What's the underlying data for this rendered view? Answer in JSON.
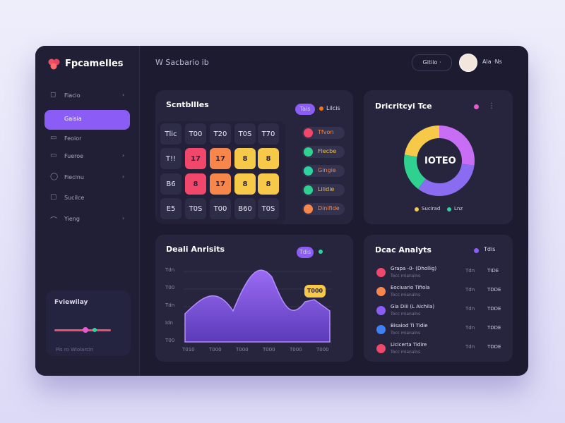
{
  "sidebar": {
    "brand": "Fpcamelles",
    "menu": [
      "Fiacio",
      "Gaisia",
      "Feoior",
      "Fueroe",
      "Fiecinu",
      "Sucilce",
      "Yieng"
    ],
    "card": {
      "title": "Fviewilay",
      "caption": "Pis ro Wiolarcin"
    }
  },
  "header": {
    "title": "W Sacbario ib",
    "button": "Gitiio ·",
    "user": "Ala ·Ns"
  },
  "schedule": {
    "title": "Scntbllles",
    "tag": "Tais",
    "tag2": "Lilcis",
    "grid": [
      [
        "Tlic",
        "T00",
        "T20",
        "T0S",
        "T70"
      ],
      [
        "T!!",
        "17",
        "17",
        "8",
        "8"
      ],
      [
        "B6",
        "8",
        "17",
        "8",
        "8"
      ],
      [
        "E5",
        "T0S",
        "T00",
        "B60",
        "T0S"
      ]
    ],
    "legend": [
      "Tfvon",
      "Flecbe",
      "Gingie",
      "Lilidie",
      "Dinifide"
    ]
  },
  "donut": {
    "title": "Dricritcyi Tce",
    "center": "IOTEO",
    "legend": [
      "Sucirad",
      "Lnz"
    ]
  },
  "analytics": {
    "title": "Deali Anrisits",
    "tag": "Tdis",
    "y_labels": [
      "Tdn",
      "T00",
      "Tdn",
      "Idn",
      "T00"
    ],
    "x_labels": [
      "T010",
      "T000",
      "T000",
      "T000",
      "T000",
      "T000"
    ],
    "tooltip": "T000"
  },
  "list": {
    "title": "Dcac Analyts",
    "tag": "Tdis",
    "rows": [
      {
        "name": "Grapa -0- (Dhollig)",
        "sub": "Tocc mianalns",
        "time": "Tdn",
        "value": "TIDE"
      },
      {
        "name": "Eociuario Tifiola",
        "sub": "Tocc mianalns",
        "time": "Tdn",
        "value": "TDDE"
      },
      {
        "name": "Gia Diii (L Aichila)",
        "sub": "Tocc mianalns",
        "time": "Tdn",
        "value": "TDDE"
      },
      {
        "name": "Bisaiod Ti Tidie",
        "sub": "Tocc mianalns",
        "time": "Tdn",
        "value": "TDDE"
      },
      {
        "name": "Licicerta Tidire",
        "sub": "Tocc mianalns",
        "time": "Tdn",
        "value": "TDDE"
      }
    ]
  }
}
